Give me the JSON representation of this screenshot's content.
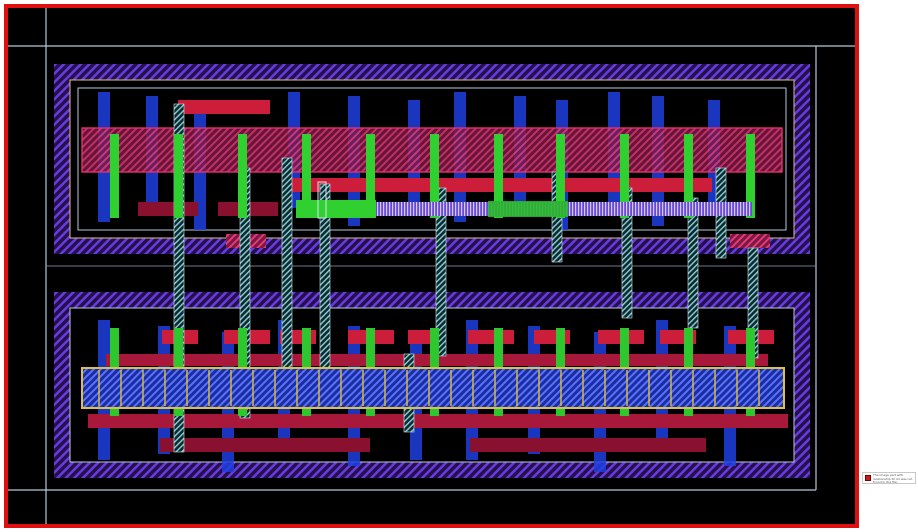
{
  "diagram": {
    "type": "ic-layout",
    "colors": {
      "background": "#000000",
      "frame_border": "#e11010",
      "outline": "#b8c8d8",
      "well": "#5a2ad0",
      "metal": "#1e3fe0",
      "poly": "#cc1e3a",
      "active": "#e03070",
      "via": "#30d030",
      "contact_bar": "#e0c040"
    }
  },
  "missing_image": {
    "icon": "broken-image-icon",
    "text": "The image part with relationship ID rId was not found in the file."
  }
}
